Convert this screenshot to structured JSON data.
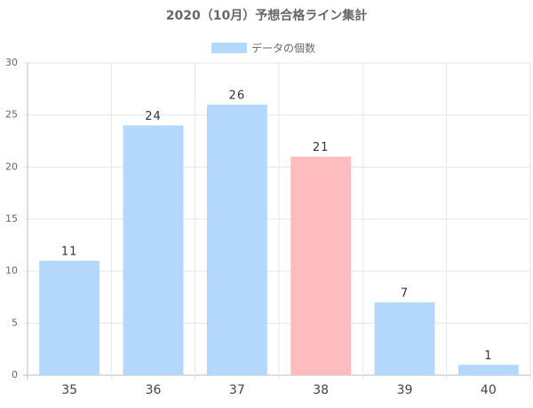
{
  "chart_data": {
    "type": "bar",
    "title": "2020（10月）予想合格ライン集計",
    "categories": [
      "35",
      "36",
      "37",
      "38",
      "39",
      "40"
    ],
    "series": [
      {
        "name": "データの個数",
        "color": "#b3d8fb",
        "colors": [
          "#b3d8fb",
          "#b3d8fb",
          "#b3d8fb",
          "#ffbcbf",
          "#b3d8fb",
          "#b3d8fb"
        ],
        "values": [
          11,
          24,
          26,
          21,
          7,
          1
        ]
      }
    ],
    "ylim": [
      0,
      30
    ],
    "yticks": [
      0,
      5,
      10,
      15,
      20,
      25,
      30
    ],
    "grid": true,
    "legend": "top"
  }
}
